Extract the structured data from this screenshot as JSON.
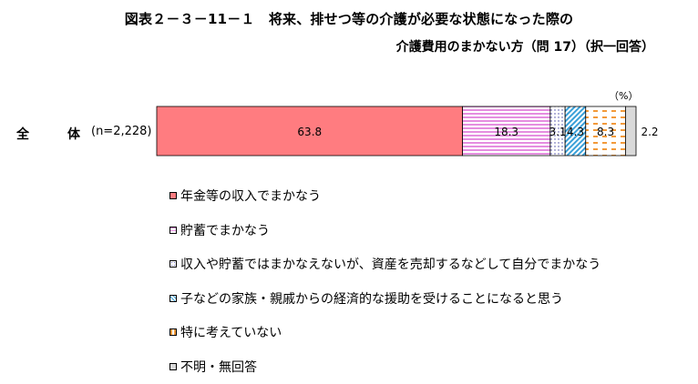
{
  "title_line1": "図表２－３－11－１　将来、排せつ等の介護が必要な状態になった際の",
  "title_line2": "介護費用のまかない方（問 17）（択一回答）",
  "unit": "（%）",
  "row": {
    "label": "全　体",
    "n": "(n=2,228)"
  },
  "chart_data": {
    "type": "bar",
    "orientation": "horizontal-stacked-100",
    "categories": [
      "全　体"
    ],
    "series": [
      {
        "name": "年金等の収入でまかなう",
        "values": [
          63.8
        ],
        "label": "63.8",
        "color": "#ff7c80",
        "pattern": "solid"
      },
      {
        "name": "貯蓄でまかなう",
        "values": [
          18.3
        ],
        "label": "18.3",
        "color": "#e58ee0",
        "pattern": "horizontal-stripes"
      },
      {
        "name": "収入や貯蓄ではまかなえないが、資産を売却するなどして自分でまかなう",
        "values": [
          3.1
        ],
        "label": "3.1",
        "color": "#7070c0",
        "pattern": "dots"
      },
      {
        "name": "子などの家族・親戚からの経済的な援助を受けることになると思う",
        "values": [
          4.3
        ],
        "label": "4.3",
        "color": "#3aa0d8",
        "pattern": "diagonal"
      },
      {
        "name": "特に考えていない",
        "values": [
          8.3
        ],
        "label": "8.3",
        "color": "#f39a3a",
        "pattern": "dashes"
      },
      {
        "name": "不明・無回答",
        "values": [
          2.2
        ],
        "label": "2.2",
        "color": "#d9d9d9",
        "pattern": "solid"
      }
    ],
    "xlim": [
      0,
      100
    ]
  }
}
